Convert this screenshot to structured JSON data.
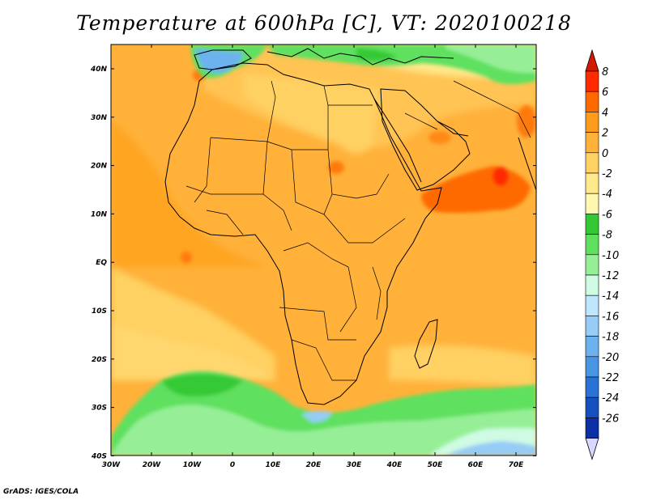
{
  "title": "Temperature at 600hPa [C], VT: 2020100218",
  "credit": "GrADS: IGES/COLA",
  "lat_labels": [
    "40N",
    "30N",
    "20N",
    "10N",
    "EQ",
    "10S",
    "20S",
    "30S",
    "40S"
  ],
  "lon_labels": [
    "30W",
    "20W",
    "10W",
    "0",
    "10E",
    "20E",
    "30E",
    "40E",
    "50E",
    "60E",
    "70E"
  ],
  "colorbar": {
    "labels": [
      "8",
      "6",
      "4",
      "2",
      "0",
      "-2",
      "-4",
      "-6",
      "-8",
      "-10",
      "-12",
      "-14",
      "-16",
      "-18",
      "-20",
      "-22",
      "-24",
      "-26"
    ],
    "colors": [
      "#ff2a00",
      "#ff6a00",
      "#ff9b1a",
      "#ffb13a",
      "#ffd062",
      "#ffe98a",
      "#fff7b0",
      "#34c934",
      "#5ee05e",
      "#96ef96",
      "#cffbe4",
      "#bfe6ff",
      "#96ccf5",
      "#6cb2ee",
      "#4795e3",
      "#2a73d6",
      "#1550c0",
      "#0c2fa6",
      "#08147a"
    ],
    "top_triangle_color": "#d11a00",
    "bottom_triangle_color": "#d9d6ff"
  }
}
